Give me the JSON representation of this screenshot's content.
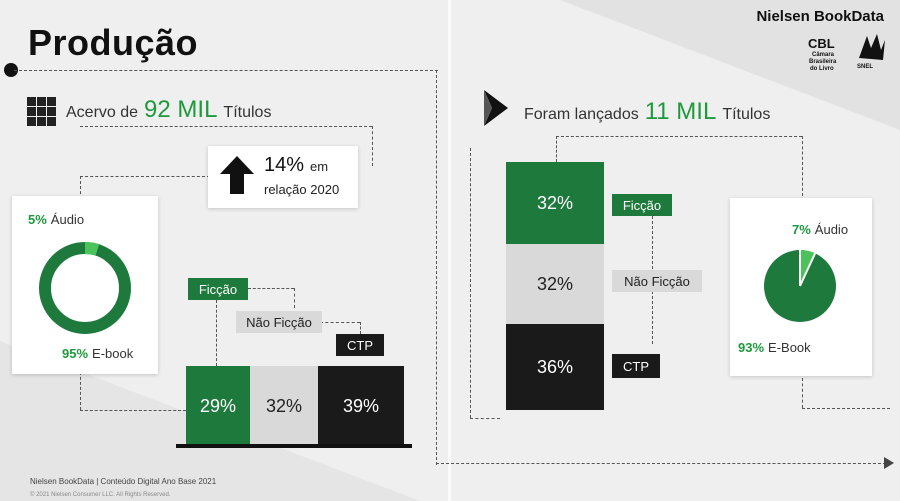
{
  "header": {
    "title": "Produção",
    "brand": "Nielsen BookData",
    "partner_logos": [
      "CBL Câmara Brasileira do Livro",
      "SNEL"
    ]
  },
  "left": {
    "lead_prefix": "Acervo de",
    "lead_number": "92 MIL",
    "lead_suffix": "Títulos",
    "growth": {
      "value": "14%",
      "text1": "em",
      "text2": "relação 2020"
    },
    "donut": {
      "audio_pct": "5%",
      "audio_label": "Áudio",
      "ebook_pct": "95%",
      "ebook_label": "E-book"
    },
    "categories": [
      {
        "label": "Ficção",
        "value": "29%",
        "color": "#1e7a3c"
      },
      {
        "label": "Não Ficção",
        "value": "32%",
        "color": "#d9d9d9"
      },
      {
        "label": "CTP",
        "value": "39%",
        "color": "#1a1a1a"
      }
    ]
  },
  "right": {
    "lead_prefix": "Foram lançados",
    "lead_number": "11 MIL",
    "lead_suffix": "Títulos",
    "stack": [
      {
        "label": "Ficção",
        "value": "32%",
        "color": "#1e7a3c"
      },
      {
        "label": "Não Ficção",
        "value": "32%",
        "color": "#d9d9d9"
      },
      {
        "label": "CTP",
        "value": "36%",
        "color": "#1a1a1a"
      }
    ],
    "pie": {
      "audio_pct": "7%",
      "audio_label": "Áudio",
      "ebook_pct": "93%",
      "ebook_label": "E-Book"
    }
  },
  "footer": {
    "source": "Nielsen BookData  | Conteúdo Digital Ano Base 2021",
    "copyright": "© 2021 Nielsen Consumer LLC. All Rights Reserved."
  },
  "chart_data": [
    {
      "type": "pie",
      "categories": [
        "Áudio",
        "E-book"
      ],
      "values": [
        5,
        95
      ]
    },
    {
      "type": "bar",
      "categories": [
        "Ficção",
        "Não Ficção",
        "CTP"
      ],
      "values": [
        29,
        32,
        39
      ]
    },
    {
      "type": "bar",
      "categories": [
        "Ficção",
        "Não Ficção",
        "CTP"
      ],
      "values": [
        32,
        32,
        36
      ]
    },
    {
      "type": "pie",
      "categories": [
        "Áudio",
        "E-Book"
      ],
      "values": [
        7,
        93
      ]
    }
  ]
}
